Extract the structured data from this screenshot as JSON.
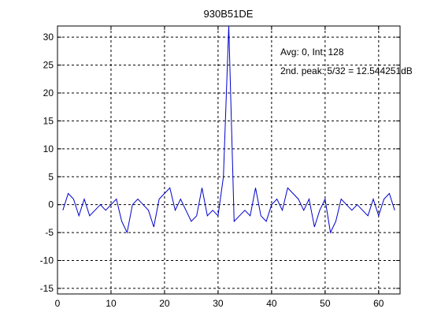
{
  "chart_data": {
    "type": "line",
    "title": "930B51DE",
    "xlabel": "",
    "ylabel": "",
    "xlim": [
      0,
      64
    ],
    "ylim": [
      -16,
      32
    ],
    "xticks": [
      0,
      10,
      20,
      30,
      40,
      50,
      60
    ],
    "yticks": [
      -15,
      -10,
      -5,
      0,
      5,
      10,
      15,
      20,
      25,
      30
    ],
    "grid": true,
    "annotations": [
      "Avg: 0, Int: 128",
      "2nd. peak: 5/32 = 12.544251dB"
    ],
    "colors": {
      "line": "#0000cc",
      "axis": "#000000",
      "grid": "#000000"
    },
    "series": [
      {
        "x": [
          1,
          2,
          3,
          4,
          5,
          6,
          7,
          8,
          9,
          10,
          11,
          12,
          13,
          14,
          15,
          16,
          17,
          18,
          19,
          20,
          21,
          22,
          23,
          24,
          25,
          26,
          27,
          28,
          29,
          30,
          31,
          32,
          33,
          34,
          35,
          36,
          37,
          38,
          39,
          40,
          41,
          42,
          43,
          44,
          45,
          46,
          47,
          48,
          49,
          50,
          51,
          52,
          53,
          54,
          55,
          56,
          57,
          58,
          59,
          60,
          61,
          62,
          63
        ],
        "values": [
          -1,
          2,
          1,
          -2,
          1,
          -2,
          -1,
          0,
          -1,
          0,
          1,
          -3,
          -5,
          0,
          1,
          0,
          -1,
          -4,
          1,
          2,
          3,
          -1,
          1,
          -1,
          -3,
          -2,
          3,
          -2,
          -1,
          -2,
          5,
          32,
          -3,
          -2,
          -1,
          -2,
          3,
          -2,
          -3,
          0,
          1,
          -1,
          3,
          2,
          1,
          -1,
          1,
          -4,
          -1,
          1,
          -5,
          -3,
          1,
          0,
          -1,
          0,
          -1,
          -2,
          1,
          -2,
          1,
          2,
          -1
        ]
      }
    ]
  }
}
